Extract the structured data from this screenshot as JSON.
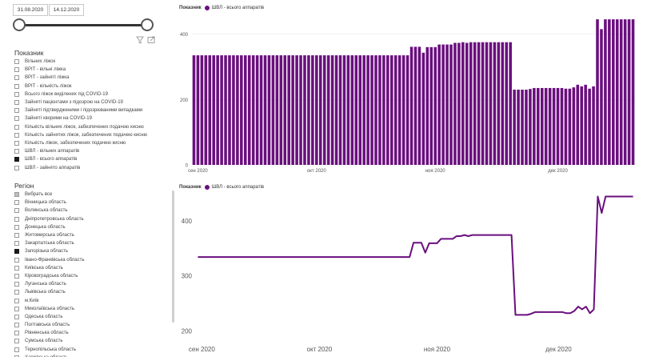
{
  "filters": {
    "date_from": "31.08.2020",
    "date_to": "14.12.2020",
    "indicator_title": "Показник",
    "indicator_items": [
      {
        "label": "Вільних ліжок",
        "checked": false
      },
      {
        "label": "ВРІТ - вільні ліжка",
        "checked": false
      },
      {
        "label": "ВРІТ - зайняті ліжка",
        "checked": false
      },
      {
        "label": "ВРІТ - кількість ліжок",
        "checked": false
      },
      {
        "label": "Всього ліжок виділених під COVID-19",
        "checked": false
      },
      {
        "label": "Зайняті пацієнтами з підозрою на COVID-19",
        "checked": false
      },
      {
        "label": "Зайняті підтвердженими і підозрюваними випадками",
        "checked": false
      },
      {
        "label": "Зайняті хворими на COVID-19",
        "checked": false
      },
      {
        "label": "Кількість вільних ліжок, забезпечених подачею кисню",
        "checked": false
      },
      {
        "label": "Кількість зайнятих ліжок, забезпечених подачею кисню",
        "checked": false
      },
      {
        "label": "Кількість ліжок, забезпечених подачею кисню",
        "checked": false
      },
      {
        "label": "ШВЛ - вільних аппаратів",
        "checked": false
      },
      {
        "label": "ШВЛ - всього аппаратів",
        "checked": true
      },
      {
        "label": "ШВЛ - зайнято аппаратів",
        "checked": false
      }
    ],
    "region_title": "Регіон",
    "region_items": [
      {
        "label": "Вибрать все",
        "checked": false,
        "partial": true
      },
      {
        "label": "Вінницька область",
        "checked": false
      },
      {
        "label": "Волинська область",
        "checked": false
      },
      {
        "label": "Дніпропетровська область",
        "checked": false
      },
      {
        "label": "Донецька область",
        "checked": false
      },
      {
        "label": "Житомирська область",
        "checked": false
      },
      {
        "label": "Закарпатська область",
        "checked": false
      },
      {
        "label": "Запорізька область",
        "checked": true
      },
      {
        "label": "Івано-Франківська область",
        "checked": false
      },
      {
        "label": "Київська область",
        "checked": false
      },
      {
        "label": "Кіровоградська область",
        "checked": false
      },
      {
        "label": "Луганська область",
        "checked": false
      },
      {
        "label": "Львівська область",
        "checked": false
      },
      {
        "label": "м.Київ",
        "checked": false
      },
      {
        "label": "Миколаївська область",
        "checked": false
      },
      {
        "label": "Одеська область",
        "checked": false
      },
      {
        "label": "Полтавська область",
        "checked": false
      },
      {
        "label": "Рівненська область",
        "checked": false
      },
      {
        "label": "Сумська область",
        "checked": false
      },
      {
        "label": "Тернопільська область",
        "checked": false
      },
      {
        "label": "Харківська область",
        "checked": false
      }
    ]
  },
  "colors": {
    "series": "#6a0f7e",
    "grid": "#e6e6e6",
    "axis_text": "#555555"
  },
  "chart_data": [
    {
      "type": "bar",
      "legend_title": "Показник",
      "series": [
        {
          "name": "ШВЛ - всього аппаратів",
          "x_start": "2020-08-31",
          "values": [
            335,
            335,
            335,
            335,
            335,
            335,
            335,
            335,
            335,
            335,
            335,
            335,
            335,
            335,
            335,
            335,
            335,
            335,
            335,
            335,
            335,
            335,
            335,
            335,
            335,
            335,
            335,
            335,
            335,
            335,
            335,
            335,
            335,
            335,
            335,
            335,
            335,
            335,
            335,
            335,
            335,
            335,
            335,
            335,
            335,
            335,
            335,
            335,
            335,
            335,
            335,
            335,
            335,
            335,
            335,
            361,
            361,
            361,
            343,
            360,
            360,
            360,
            368,
            368,
            368,
            368,
            373,
            373,
            375,
            373,
            375,
            375,
            375,
            375,
            375,
            375,
            375,
            375,
            375,
            375,
            375,
            230,
            230,
            230,
            230,
            232,
            235,
            235,
            235,
            235,
            235,
            235,
            235,
            235,
            233,
            233,
            237,
            245,
            240,
            245,
            233,
            240,
            445,
            415,
            445,
            445,
            445,
            445,
            445,
            445,
            445,
            445
          ]
        }
      ],
      "x_ticks": [
        "сен 2020",
        "окт 2020",
        "ноя 2020",
        "дек 2020"
      ],
      "y_ticks": [
        0,
        200,
        400
      ],
      "ylim": [
        0,
        460
      ],
      "grid": true,
      "legend_position": "top-left"
    },
    {
      "type": "line",
      "legend_title": "Показник",
      "series": [
        {
          "name": "ШВЛ - всього аппаратів",
          "x_start": "2020-08-31",
          "values": [
            335,
            335,
            335,
            335,
            335,
            335,
            335,
            335,
            335,
            335,
            335,
            335,
            335,
            335,
            335,
            335,
            335,
            335,
            335,
            335,
            335,
            335,
            335,
            335,
            335,
            335,
            335,
            335,
            335,
            335,
            335,
            335,
            335,
            335,
            335,
            335,
            335,
            335,
            335,
            335,
            335,
            335,
            335,
            335,
            335,
            335,
            335,
            335,
            335,
            335,
            335,
            335,
            335,
            335,
            335,
            361,
            361,
            361,
            343,
            360,
            360,
            360,
            368,
            368,
            368,
            368,
            373,
            373,
            375,
            373,
            375,
            375,
            375,
            375,
            375,
            375,
            375,
            375,
            375,
            375,
            375,
            230,
            230,
            230,
            230,
            232,
            235,
            235,
            235,
            235,
            235,
            235,
            235,
            235,
            233,
            233,
            237,
            245,
            240,
            245,
            233,
            240,
            445,
            415,
            445,
            445,
            445,
            445,
            445,
            445,
            445,
            445
          ]
        }
      ],
      "x_ticks": [
        "сен 2020",
        "окт 2020",
        "ноя 2020",
        "дек 2020"
      ],
      "y_ticks": [
        200,
        300,
        400
      ],
      "ylim": [
        200,
        450
      ],
      "grid": false,
      "legend_position": "top-left"
    }
  ]
}
